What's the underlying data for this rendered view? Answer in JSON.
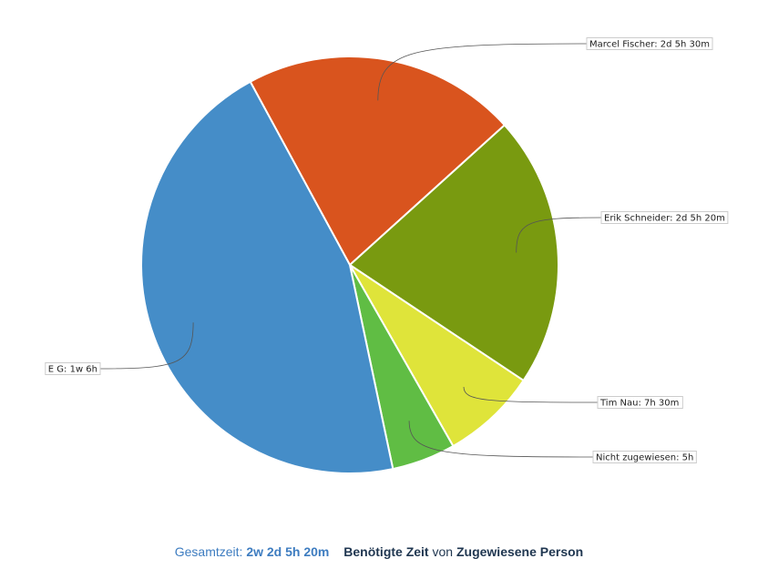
{
  "chart_data": {
    "type": "pie",
    "unit": "minutes",
    "slices": [
      {
        "label": "Marcel Fischer: 2d 5h 30m",
        "name": "Marcel Fischer",
        "value": 1290,
        "color": "#d9541e"
      },
      {
        "label": "Erik Schneider: 2d 5h 20m",
        "name": "Erik Schneider",
        "value": 1280,
        "color": "#799a10"
      },
      {
        "label": "Tim Nau: 7h 30m",
        "name": "Tim Nau",
        "value": 450,
        "color": "#dfe43a"
      },
      {
        "label": "Nicht zugewiesen: 5h",
        "name": "Nicht zugewiesen",
        "value": 300,
        "color": "#60bd44"
      },
      {
        "label": "E G: 1w 6h",
        "name": "E G",
        "value": 2760,
        "color": "#458dc8"
      }
    ]
  },
  "footer": {
    "total_label": "Gesamtzeit:",
    "total_value": "2w 2d 5h 20m",
    "title": "Benötigte Zeit",
    "connector": "von",
    "group": "Zugewiesene Person"
  }
}
